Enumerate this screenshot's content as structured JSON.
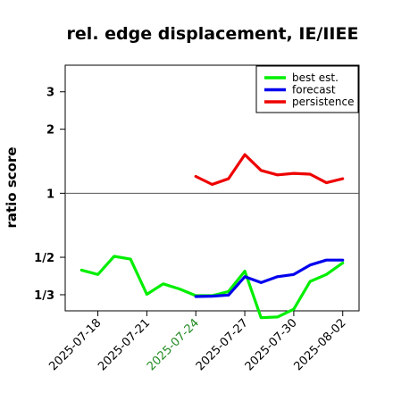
{
  "chart_data": {
    "type": "line",
    "title": "rel. edge displacement, IE/IIEE",
    "xlabel": "",
    "ylabel": "ratio score",
    "x": [
      "2025-07-17",
      "2025-07-18",
      "2025-07-19",
      "2025-07-20",
      "2025-07-21",
      "2025-07-22",
      "2025-07-23",
      "2025-07-24",
      "2025-07-25",
      "2025-07-26",
      "2025-07-27",
      "2025-07-28",
      "2025-07-29",
      "2025-07-30",
      "2025-07-31",
      "2025-08-01",
      "2025-08-02"
    ],
    "x_tick_labels": [
      "2025-07-18",
      "2025-07-21",
      "2025-07-24",
      "2025-07-27",
      "2025-07-30",
      "2025-08-02"
    ],
    "highlight_tick": "2025-07-24",
    "highlight_color": "#228b22",
    "y_scale": "log",
    "y_ticks": [
      0.3333,
      0.5,
      1,
      2,
      3
    ],
    "y_tick_labels": [
      "1/3",
      "1/2",
      "1",
      "2",
      "3"
    ],
    "ylim": [
      0.28,
      4.0
    ],
    "xlim": [
      "2025-07-16",
      "2025-08-03"
    ],
    "reference_line": 1,
    "grid": false,
    "legend_position": "top-right",
    "series": [
      {
        "name": "best est.",
        "color": "#00ee00",
        "values": [
          0.435,
          0.415,
          0.505,
          0.49,
          0.335,
          0.375,
          0.355,
          0.33,
          0.33,
          0.345,
          0.43,
          0.26,
          0.262,
          0.285,
          0.385,
          0.415,
          0.47
        ]
      },
      {
        "name": "forecast",
        "color": "#0000ee",
        "values": [
          null,
          null,
          null,
          null,
          null,
          null,
          null,
          0.327,
          0.328,
          0.332,
          0.405,
          0.38,
          0.405,
          0.415,
          0.46,
          0.485,
          0.485
        ]
      },
      {
        "name": "persistence",
        "color": "#ee0000",
        "values": [
          null,
          null,
          null,
          null,
          null,
          null,
          null,
          1.2,
          1.1,
          1.17,
          1.52,
          1.28,
          1.22,
          1.24,
          1.23,
          1.12,
          1.17
        ]
      }
    ]
  }
}
